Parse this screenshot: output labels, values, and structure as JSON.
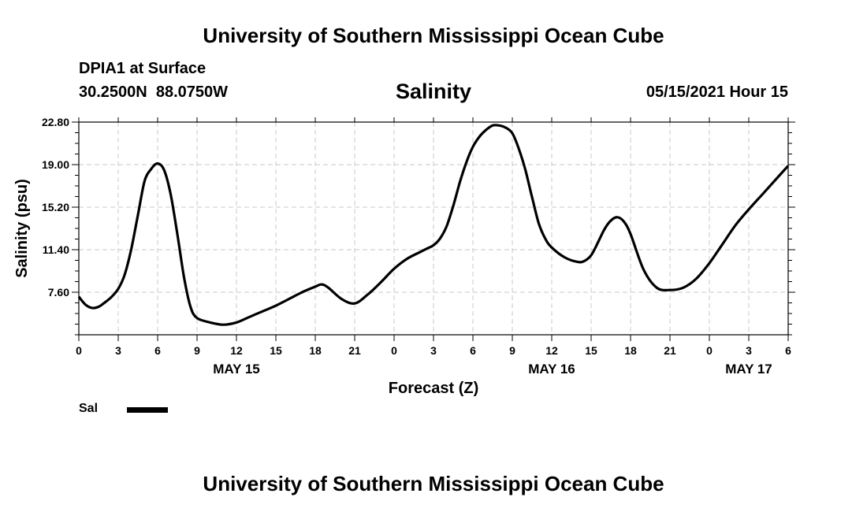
{
  "header": {
    "title": "University of Southern Mississippi Ocean Cube",
    "station": "DPIA1 at Surface",
    "coords": "30.2500N  88.0750W",
    "datetime": "05/15/2021 Hour 15"
  },
  "footer": {
    "title": "University of Southern Mississippi Ocean Cube"
  },
  "chart_data": {
    "type": "line",
    "title": "Salinity",
    "xlabel": "Forecast (Z)",
    "ylabel": "Salinity (psu)",
    "xlim": [
      0,
      54
    ],
    "ylim": [
      3.8,
      22.8
    ],
    "yticks": [
      7.6,
      11.4,
      15.2,
      19.0,
      22.8
    ],
    "ytick_labels": [
      "7.60",
      "11.40",
      "15.20",
      "19.00",
      "22.80"
    ],
    "xticks": [
      0,
      3,
      6,
      9,
      12,
      15,
      18,
      21,
      24,
      27,
      30,
      33,
      36,
      39,
      42,
      45,
      48,
      51,
      54
    ],
    "xtick_labels": [
      "0",
      "3",
      "6",
      "9",
      "12",
      "15",
      "18",
      "21",
      "0",
      "3",
      "6",
      "9",
      "12",
      "15",
      "18",
      "21",
      "0",
      "3",
      "6"
    ],
    "date_labels": [
      {
        "x": 12,
        "label": "MAY 15"
      },
      {
        "x": 36,
        "label": "MAY 16"
      },
      {
        "x": 51,
        "label": "MAY 17"
      }
    ],
    "grid": true,
    "legend": [
      {
        "name": "Sal",
        "color": "#000000"
      }
    ],
    "series": [
      {
        "name": "Sal",
        "x": [
          0,
          0.5,
          1,
          1.5,
          2,
          2.5,
          3,
          3.5,
          4,
          4.5,
          5,
          5.5,
          6,
          6.5,
          7,
          7.5,
          8,
          8.5,
          9,
          10,
          11,
          12,
          13,
          14,
          15,
          16,
          17,
          18,
          18.5,
          19,
          20,
          21,
          22,
          23,
          24,
          25,
          26,
          26.5,
          27,
          27.5,
          28,
          28.5,
          29,
          29.5,
          30,
          30.5,
          31,
          31.5,
          32,
          32.5,
          33,
          33.5,
          34,
          34.5,
          35,
          35.5,
          36,
          37,
          38,
          38.5,
          39,
          39.5,
          40,
          40.5,
          41,
          41.5,
          42,
          43,
          44,
          45,
          46,
          47,
          48,
          49,
          50,
          51,
          52,
          53,
          54
        ],
        "y": [
          7.2,
          6.5,
          6.2,
          6.3,
          6.7,
          7.2,
          7.9,
          9.2,
          11.5,
          14.5,
          17.5,
          18.6,
          19.1,
          18.5,
          16.3,
          12.8,
          9.0,
          6.3,
          5.3,
          4.9,
          4.7,
          4.9,
          5.4,
          5.9,
          6.4,
          7.0,
          7.6,
          8.1,
          8.3,
          8.0,
          7.0,
          6.6,
          7.4,
          8.5,
          9.7,
          10.6,
          11.2,
          11.5,
          11.8,
          12.4,
          13.5,
          15.3,
          17.4,
          19.2,
          20.6,
          21.5,
          22.1,
          22.5,
          22.5,
          22.3,
          21.8,
          20.4,
          18.5,
          16.1,
          13.8,
          12.4,
          11.6,
          10.7,
          10.3,
          10.4,
          10.9,
          12.0,
          13.2,
          14.0,
          14.3,
          13.9,
          12.8,
          9.6,
          8.0,
          7.8,
          8.0,
          8.8,
          10.2,
          11.9,
          13.6,
          15.0,
          16.3,
          17.6,
          18.9
        ]
      }
    ]
  }
}
